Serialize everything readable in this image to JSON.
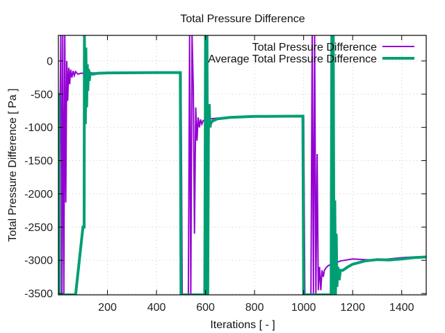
{
  "chart_data": {
    "type": "line",
    "title": "Total Pressure Difference",
    "xlabel": "Iterations [ - ]",
    "ylabel": "Total Pressure Difference [ Pa ]",
    "xlim": [
      0,
      1500
    ],
    "ylim": [
      -3520,
      385
    ],
    "xticks": [
      200,
      400,
      600,
      800,
      1000,
      1200,
      1400
    ],
    "yticks": [
      0,
      -500,
      -1000,
      -1500,
      -2000,
      -2500,
      -3000,
      -3500
    ],
    "grid": true,
    "legend_position": "top-right",
    "colors": {
      "total": "#9400d3",
      "average": "#009e73"
    },
    "series": [
      {
        "name": "Total Pressure Difference",
        "x": [
          0,
          10,
          14,
          18,
          22,
          26,
          30,
          34,
          38,
          42,
          46,
          50,
          55,
          60,
          65,
          70,
          80,
          90,
          100,
          150,
          300,
          500,
          505,
          530,
          535,
          540,
          545,
          550,
          555,
          560,
          565,
          570,
          575,
          580,
          585,
          590,
          600,
          620,
          650,
          700,
          800,
          1000,
          1005,
          1030,
          1035,
          1040,
          1045,
          1050,
          1055,
          1060,
          1065,
          1070,
          1075,
          1080,
          1085,
          1090,
          1100,
          1120,
          1150,
          1200,
          1250,
          1300,
          1350,
          1400,
          1450,
          1500
        ],
        "y": [
          -3520,
          385,
          -3520,
          385,
          -3520,
          385,
          -2130,
          0,
          -600,
          -100,
          -350,
          -130,
          -250,
          -150,
          -220,
          -160,
          -200,
          -185,
          -185,
          -180,
          -178,
          -175,
          -3520,
          -3520,
          385,
          -3520,
          385,
          -400,
          -2600,
          -700,
          -1200,
          -850,
          -1000,
          -880,
          -950,
          -900,
          -880,
          -870,
          -860,
          -845,
          -835,
          -830,
          -3520,
          -3520,
          385,
          -3520,
          385,
          -3520,
          -1400,
          -3450,
          -3100,
          -3450,
          -3150,
          -3250,
          -3150,
          -3120,
          -3080,
          -3050,
          -3010,
          -2980,
          -2990,
          -2995,
          -2980,
          -2960,
          -2950,
          -2950
        ]
      },
      {
        "name": "Average Total Pressure Difference",
        "x": [
          0,
          2,
          4,
          70,
          100,
          105,
          106,
          110,
          112,
          115,
          118,
          120,
          123,
          126,
          130,
          140,
          160,
          200,
          300,
          400,
          497,
          500,
          597,
          600,
          603,
          606,
          609,
          612,
          615,
          618,
          622,
          630,
          650,
          700,
          800,
          997,
          1000,
          1112,
          1115,
          1118,
          1121,
          1124,
          1127,
          1130,
          1133,
          1136,
          1140,
          1145,
          1150,
          1160,
          1180,
          1200,
          1250,
          1300,
          1350,
          1400,
          1450,
          1500
        ],
        "y": [
          -500,
          -500,
          -3520,
          -3520,
          -2500,
          -2500,
          385,
          -950,
          200,
          -700,
          -50,
          -450,
          -120,
          -300,
          -180,
          -200,
          -185,
          -180,
          -178,
          -175,
          -175,
          -3520,
          -3520,
          385,
          -3520,
          385,
          -3520,
          -950,
          -650,
          -1000,
          -930,
          -900,
          -870,
          -850,
          -835,
          -830,
          -3520,
          -3520,
          385,
          -3520,
          385,
          -3520,
          -2100,
          -3520,
          -2600,
          -3400,
          -3100,
          -3300,
          -3150,
          -3150,
          -3100,
          -3060,
          -3010,
          -2990,
          -2995,
          -2980,
          -2960,
          -2950
        ]
      }
    ]
  }
}
